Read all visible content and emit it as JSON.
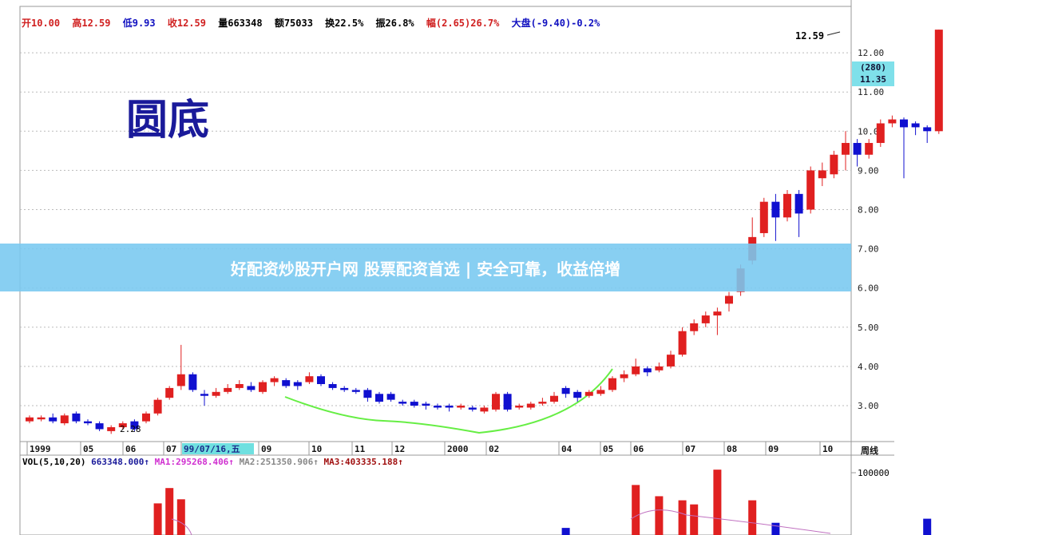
{
  "header": {
    "open": "开10.00",
    "high": "高12.59",
    "low": "低9.93",
    "close": "收12.59",
    "volume": "量663348",
    "amount": "额75033",
    "turnover": "换22.5%",
    "amplitude": "振26.8%",
    "change": "幅(2.65)26.7%",
    "market": "大盘(-9.40)-0.2%"
  },
  "title": "圆底",
  "banner": "好配资炒股开户网 股票配资首选 | 安全可靠，收益倍增",
  "price_tag": {
    "count": "(280)",
    "value": "11.35"
  },
  "period": "周线",
  "vol_info": {
    "label": "VOL(5,10,20)",
    "vol": "663348.000↑",
    "ma1": "MA1:295268.406↑",
    "ma2": "MA2:251350.906↑",
    "ma3": "MA3:403335.188↑"
  },
  "colors": {
    "up": "#e02020",
    "down": "#1010d0",
    "arc": "#66ee44"
  },
  "chart_data": {
    "type": "candlestick",
    "y_ticks": [
      "3.00",
      "4.00",
      "5.00",
      "6.00",
      "7.00",
      "8.00",
      "9.00",
      "10.00",
      "11.00",
      "12.00"
    ],
    "ylim": [
      2.2,
      12.8
    ],
    "x_ticks": [
      "1999",
      "05",
      "06",
      "07",
      "99/07/16,五",
      "09",
      "10",
      "11",
      "12",
      "2000",
      "02",
      "04",
      "05",
      "06",
      "07",
      "08",
      "09",
      "10"
    ],
    "annotations": {
      "low": "2.28",
      "high": "12.59"
    },
    "ohlc": [
      [
        2.6,
        2.7,
        2.75,
        2.55
      ],
      [
        2.65,
        2.7,
        2.75,
        2.6
      ],
      [
        2.7,
        2.6,
        2.8,
        2.55
      ],
      [
        2.55,
        2.75,
        2.8,
        2.5
      ],
      [
        2.8,
        2.6,
        2.85,
        2.55
      ],
      [
        2.6,
        2.55,
        2.65,
        2.5
      ],
      [
        2.55,
        2.4,
        2.6,
        2.35
      ],
      [
        2.35,
        2.45,
        2.5,
        2.28
      ],
      [
        2.45,
        2.55,
        2.6,
        2.4
      ],
      [
        2.6,
        2.4,
        2.65,
        2.35
      ],
      [
        2.6,
        2.8,
        2.85,
        2.55
      ],
      [
        2.8,
        3.15,
        3.2,
        2.75
      ],
      [
        3.2,
        3.45,
        3.5,
        3.15
      ],
      [
        3.5,
        3.8,
        4.55,
        3.4
      ],
      [
        3.8,
        3.4,
        3.85,
        3.35
      ],
      [
        3.3,
        3.25,
        3.4,
        3.0
      ],
      [
        3.25,
        3.35,
        3.45,
        3.2
      ],
      [
        3.35,
        3.45,
        3.55,
        3.3
      ],
      [
        3.45,
        3.55,
        3.65,
        3.4
      ],
      [
        3.5,
        3.4,
        3.6,
        3.35
      ],
      [
        3.35,
        3.6,
        3.65,
        3.3
      ],
      [
        3.6,
        3.7,
        3.75,
        3.5
      ],
      [
        3.65,
        3.5,
        3.7,
        3.45
      ],
      [
        3.6,
        3.5,
        3.65,
        3.4
      ],
      [
        3.6,
        3.75,
        3.85,
        3.55
      ],
      [
        3.75,
        3.55,
        3.8,
        3.5
      ],
      [
        3.55,
        3.45,
        3.6,
        3.4
      ],
      [
        3.45,
        3.4,
        3.5,
        3.35
      ],
      [
        3.4,
        3.35,
        3.45,
        3.3
      ],
      [
        3.4,
        3.2,
        3.45,
        3.1
      ],
      [
        3.3,
        3.1,
        3.35,
        3.05
      ],
      [
        3.3,
        3.15,
        3.35,
        3.1
      ],
      [
        3.1,
        3.05,
        3.15,
        3.0
      ],
      [
        3.1,
        3.0,
        3.15,
        2.95
      ],
      [
        3.05,
        3.0,
        3.1,
        2.9
      ],
      [
        3.0,
        2.95,
        3.05,
        2.9
      ],
      [
        3.0,
        2.95,
        3.05,
        2.85
      ],
      [
        2.95,
        3.0,
        3.05,
        2.9
      ],
      [
        2.95,
        2.9,
        3.0,
        2.85
      ],
      [
        2.85,
        2.95,
        3.0,
        2.8
      ],
      [
        2.9,
        3.3,
        3.35,
        2.85
      ],
      [
        3.3,
        2.9,
        3.35,
        2.85
      ],
      [
        2.95,
        3.0,
        3.05,
        2.9
      ],
      [
        2.95,
        3.05,
        3.1,
        2.9
      ],
      [
        3.05,
        3.1,
        3.2,
        3.0
      ],
      [
        3.1,
        3.25,
        3.35,
        3.05
      ],
      [
        3.45,
        3.3,
        3.5,
        3.2
      ],
      [
        3.35,
        3.2,
        3.4,
        3.1
      ],
      [
        3.25,
        3.35,
        3.4,
        3.2
      ],
      [
        3.3,
        3.4,
        3.5,
        3.25
      ],
      [
        3.4,
        3.7,
        3.75,
        3.35
      ],
      [
        3.7,
        3.8,
        3.9,
        3.6
      ],
      [
        3.8,
        4.0,
        4.2,
        3.75
      ],
      [
        3.95,
        3.85,
        4.0,
        3.75
      ],
      [
        3.9,
        4.0,
        4.1,
        3.85
      ],
      [
        4.0,
        4.3,
        4.4,
        3.95
      ],
      [
        4.3,
        4.9,
        5.0,
        4.25
      ],
      [
        4.9,
        5.1,
        5.2,
        4.8
      ],
      [
        5.1,
        5.3,
        5.4,
        5.0
      ],
      [
        5.3,
        5.4,
        5.5,
        4.8
      ],
      [
        5.6,
        5.8,
        5.9,
        5.4
      ],
      [
        5.9,
        6.5,
        6.6,
        5.8
      ],
      [
        6.7,
        7.3,
        7.8,
        6.6
      ],
      [
        7.4,
        8.2,
        8.3,
        7.3
      ],
      [
        8.2,
        7.8,
        8.4,
        7.2
      ],
      [
        7.8,
        8.4,
        8.5,
        7.7
      ],
      [
        8.4,
        7.9,
        8.5,
        7.3
      ],
      [
        8.0,
        9.0,
        9.1,
        7.9
      ],
      [
        8.8,
        9.0,
        9.2,
        8.6
      ],
      [
        8.9,
        9.4,
        9.5,
        8.8
      ],
      [
        9.4,
        9.7,
        10.0,
        9.0
      ],
      [
        9.7,
        9.4,
        9.8,
        9.1
      ],
      [
        9.4,
        9.7,
        9.8,
        9.3
      ],
      [
        9.7,
        10.2,
        10.3,
        9.6
      ],
      [
        10.2,
        10.3,
        10.4,
        10.1
      ],
      [
        10.3,
        10.1,
        10.35,
        8.8
      ],
      [
        10.2,
        10.1,
        10.25,
        9.9
      ],
      [
        10.1,
        10.0,
        10.15,
        9.7
      ],
      [
        10.0,
        12.59,
        12.59,
        9.93
      ]
    ],
    "volume_axis": [
      "100000"
    ],
    "volume": [
      {
        "i": 11,
        "v": 70000
      },
      {
        "i": 12,
        "v": 85000
      },
      {
        "i": 13,
        "v": 74000
      },
      {
        "i": 46,
        "v": 46000
      },
      {
        "i": 52,
        "v": 88000
      },
      {
        "i": 54,
        "v": 77000
      },
      {
        "i": 56,
        "v": 73000
      },
      {
        "i": 57,
        "v": 69000
      },
      {
        "i": 59,
        "v": 103000
      },
      {
        "i": 62,
        "v": 73000
      },
      {
        "i": 64,
        "v": 51000
      },
      {
        "i": 77,
        "v": 55000
      }
    ]
  }
}
